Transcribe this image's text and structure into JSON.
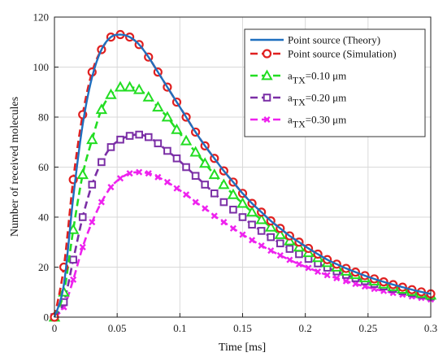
{
  "chart_data": {
    "type": "line",
    "xlabel": "Time [ms]",
    "ylabel": "Number of received molecules",
    "xlim": [
      0,
      0.3
    ],
    "ylim": [
      0,
      120
    ],
    "xticks": [
      0,
      0.05,
      0.1,
      0.15,
      0.2,
      0.25,
      0.3
    ],
    "xtick_labels": [
      "0",
      "0.05",
      "0.1",
      "0.15",
      "0.2",
      "0.25",
      "0.3"
    ],
    "yticks": [
      0,
      20,
      40,
      60,
      80,
      100,
      120
    ],
    "ytick_labels": [
      "0",
      "20",
      "40",
      "60",
      "80",
      "100",
      "120"
    ],
    "grid": true,
    "legend_position": "top-right",
    "x": [
      0,
      0.0075,
      0.015,
      0.0225,
      0.03,
      0.0375,
      0.045,
      0.0525,
      0.06,
      0.0675,
      0.075,
      0.0825,
      0.09,
      0.0975,
      0.105,
      0.1125,
      0.12,
      0.1275,
      0.135,
      0.1425,
      0.15,
      0.1575,
      0.165,
      0.1725,
      0.18,
      0.1875,
      0.195,
      0.2025,
      0.21,
      0.2175,
      0.225,
      0.2325,
      0.24,
      0.2475,
      0.255,
      0.2625,
      0.27,
      0.2775,
      0.285,
      0.2925,
      0.3
    ],
    "series": [
      {
        "name": "Point source (Theory)",
        "color": "#1f6fbf",
        "style": "solid-line",
        "values": [
          0,
          13,
          48,
          77,
          96,
          107,
          112,
          113,
          112,
          109,
          104,
          98,
          92,
          86,
          80,
          74,
          68.5,
          63.5,
          58.5,
          54,
          49.5,
          45.5,
          42,
          38.5,
          35.5,
          32.5,
          30,
          27.5,
          25.2,
          23,
          21.2,
          19.5,
          18,
          16.6,
          15.3,
          14.1,
          13,
          12,
          11,
          10.1,
          9.3
        ]
      },
      {
        "name": "Point source (Simulation)",
        "label_parts": [
          "Point source (Simulation)"
        ],
        "color": "#e02020",
        "style": "dashed-circle",
        "values": [
          0,
          20,
          55,
          81,
          98,
          107,
          112,
          113,
          112,
          109,
          104,
          98,
          92,
          86,
          80,
          74,
          68.5,
          63.5,
          58.5,
          54,
          49.5,
          45.5,
          42,
          38.5,
          35.5,
          32.5,
          30,
          27.5,
          25.2,
          23,
          21.2,
          19.5,
          18,
          16.6,
          15.3,
          14.1,
          13,
          12,
          11,
          10.1,
          9.3
        ]
      },
      {
        "name": "aTX=0.10 μm",
        "label_parts": [
          "a",
          "TX",
          "=0.10 μm"
        ],
        "color": "#22dd22",
        "style": "dashed-triangle",
        "values": [
          0,
          10,
          35,
          57,
          71,
          83,
          89,
          92,
          92,
          91,
          88,
          84,
          80,
          75,
          70.5,
          66,
          61.5,
          57,
          53,
          49,
          45.5,
          42,
          39,
          36,
          33,
          30.5,
          28,
          25.8,
          23.8,
          21.8,
          20,
          18.4,
          17,
          15.7,
          14.4,
          13.2,
          12.2,
          11.2,
          10.3,
          9.5,
          8.8
        ]
      },
      {
        "name": "aTX=0.20 μm",
        "label_parts": [
          "a",
          "TX",
          "=0.20 μm"
        ],
        "color": "#7b2fa6",
        "style": "dashed-square",
        "values": [
          0,
          6,
          23,
          40,
          53,
          62,
          68,
          71,
          72.5,
          73,
          72,
          69.5,
          66.5,
          63.5,
          60,
          56.5,
          53,
          49.5,
          46,
          43,
          40,
          37,
          34.5,
          32,
          29.5,
          27.3,
          25.2,
          23.3,
          21.5,
          19.8,
          18.3,
          16.9,
          15.6,
          14.4,
          13.3,
          12.3,
          11.3,
          10.4,
          9.6,
          8.9,
          8.2
        ]
      },
      {
        "name": "aTX=0.30 μm",
        "label_parts": [
          "a",
          "TX",
          "=0.30 μm"
        ],
        "color": "#ee22ee",
        "style": "dashed-x",
        "values": [
          0,
          4,
          15,
          28,
          38,
          46,
          52,
          55.5,
          57.5,
          58,
          57.5,
          56,
          54,
          51.5,
          49,
          46,
          43.5,
          40.5,
          38,
          35.5,
          33,
          30.8,
          28.6,
          26.6,
          24.7,
          22.9,
          21.2,
          19.7,
          18.2,
          16.8,
          15.6,
          14.4,
          13.3,
          12.3,
          11.3,
          10.5,
          9.7,
          9,
          8.3,
          7.7,
          7.1
        ]
      }
    ]
  }
}
